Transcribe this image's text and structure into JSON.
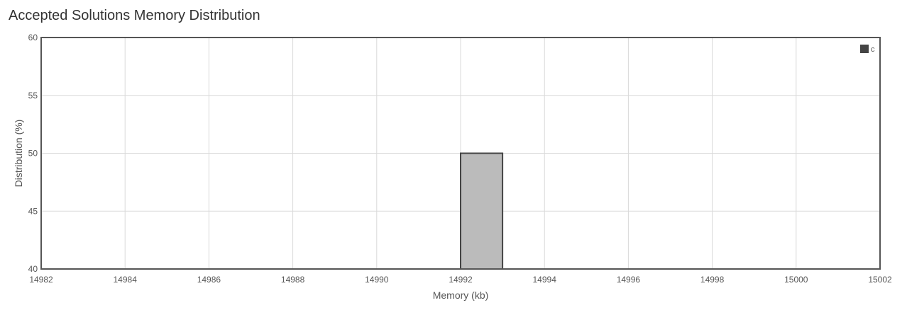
{
  "chart_data": {
    "type": "bar",
    "title": "Accepted Solutions Memory Distribution",
    "xlabel": "Memory (kb)",
    "ylabel": "Distribution (%)",
    "xlim": [
      14982,
      15002
    ],
    "ylim": [
      40,
      60
    ],
    "x_ticks": [
      14982,
      14984,
      14986,
      14988,
      14990,
      14992,
      14994,
      14996,
      14998,
      15000,
      15002
    ],
    "y_ticks": [
      40,
      45,
      50,
      55,
      60
    ],
    "grid": true,
    "legend_position": "top-right",
    "series": [
      {
        "name": "c",
        "color": "#bbbbbb",
        "edge_color": "#444444",
        "bars": [
          {
            "x_start": 14992,
            "x_end": 14993,
            "value": 50
          }
        ]
      }
    ]
  }
}
